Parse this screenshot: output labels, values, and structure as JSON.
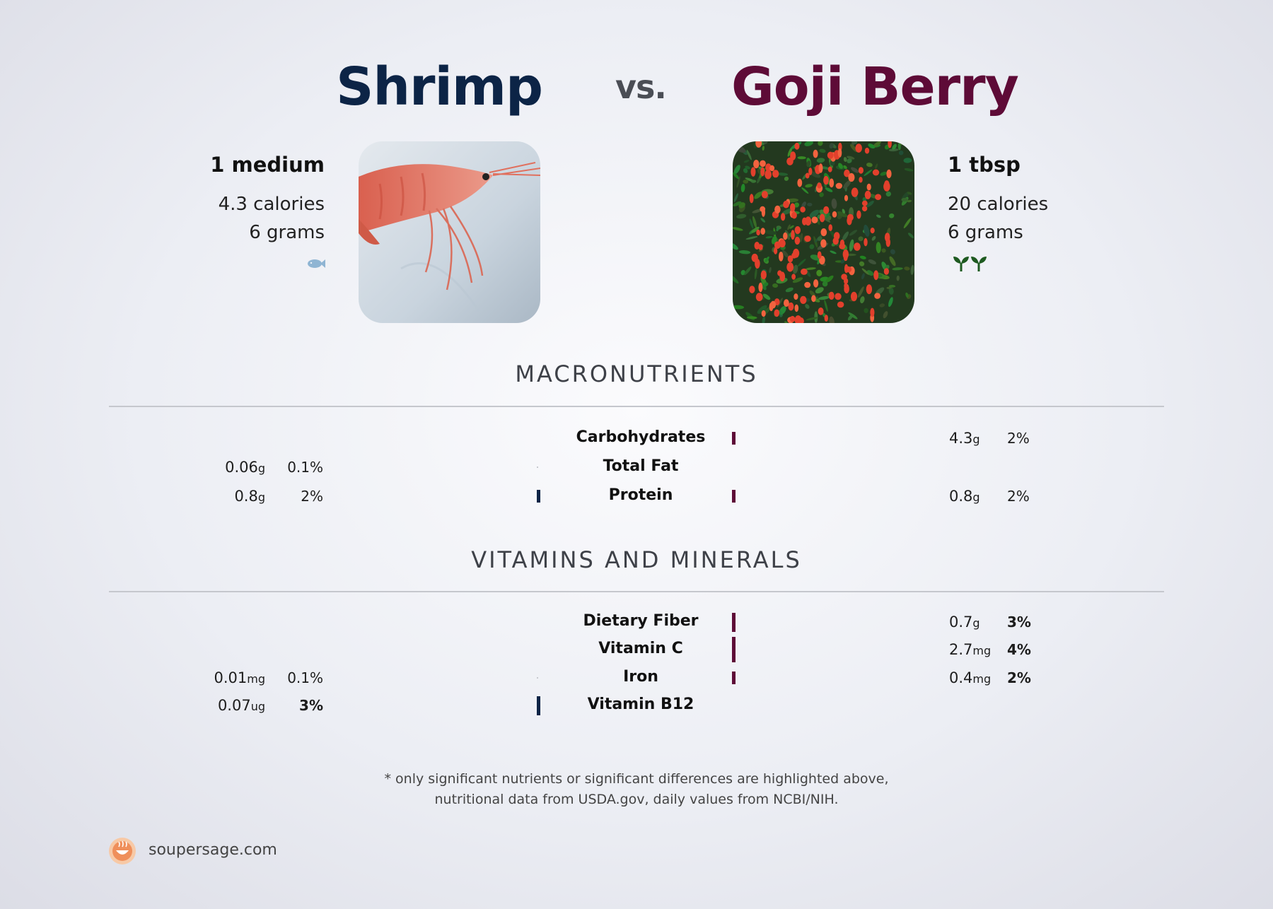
{
  "header": {
    "left_title": "Shrimp",
    "vs": "vs.",
    "right_title": "Goji Berry"
  },
  "left_food": {
    "serving": "1 medium",
    "calories": "4.3 calories",
    "grams": "6 grams",
    "category_icon": "fish-icon",
    "photo": "shrimp-photo"
  },
  "right_food": {
    "serving": "1 tbsp",
    "calories": "20 calories",
    "grams": "6 grams",
    "category_icon": "sprout-icon",
    "photo": "goji-berry-photo"
  },
  "sections": {
    "macros": "MACRONUTRIENTS",
    "vitamins": "VITAMINS AND MINERALS"
  },
  "chart_data": {
    "type": "table",
    "colors": {
      "left": "#0c2446",
      "right": "#5e0b37"
    },
    "macronutrients": [
      {
        "name": "Carbohydrates",
        "left": null,
        "right": {
          "amount": "4.3",
          "unit": "g",
          "pct": "2%",
          "pct_value": 2,
          "bold": false
        }
      },
      {
        "name": "Total Fat",
        "left": {
          "amount": "0.06",
          "unit": "g",
          "pct": "0.1%",
          "pct_value": 0.1,
          "bold": false
        },
        "right": null
      },
      {
        "name": "Protein",
        "left": {
          "amount": "0.8",
          "unit": "g",
          "pct": "2%",
          "pct_value": 2,
          "bold": false
        },
        "right": {
          "amount": "0.8",
          "unit": "g",
          "pct": "2%",
          "pct_value": 2,
          "bold": false
        }
      }
    ],
    "vitamins_minerals": [
      {
        "name": "Dietary Fiber",
        "left": null,
        "right": {
          "amount": "0.7",
          "unit": "g",
          "pct": "3%",
          "pct_value": 3,
          "bold": true
        }
      },
      {
        "name": "Vitamin C",
        "left": null,
        "right": {
          "amount": "2.7",
          "unit": "mg",
          "pct": "4%",
          "pct_value": 4,
          "bold": true
        }
      },
      {
        "name": "Iron",
        "left": {
          "amount": "0.01",
          "unit": "mg",
          "pct": "0.1%",
          "pct_value": 0.1,
          "bold": false
        },
        "right": {
          "amount": "0.4",
          "unit": "mg",
          "pct": "2%",
          "pct_value": 2,
          "bold": true
        }
      },
      {
        "name": "Vitamin B12",
        "left": {
          "amount": "0.07",
          "unit": "ug",
          "pct": "3%",
          "pct_value": 3,
          "bold": true
        },
        "right": null
      }
    ]
  },
  "footer": {
    "line1": "* only significant nutrients or significant differences are highlighted above,",
    "line2": "nutritional data from USDA.gov, daily values from NCBI/NIH.",
    "brand": "soupersage.com"
  }
}
